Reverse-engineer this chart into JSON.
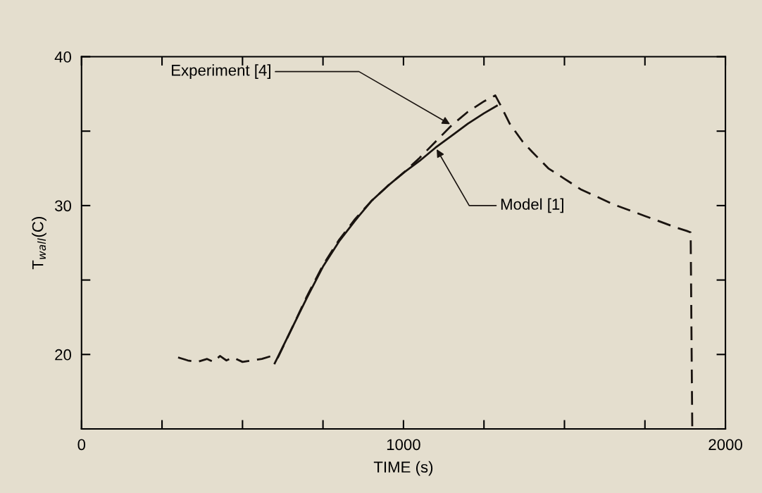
{
  "chart_data": {
    "type": "line",
    "xlabel": "TIME (s)",
    "ylabel": "T$_{wall}$(C)",
    "xlim": [
      0,
      2000
    ],
    "ylim": [
      15,
      40
    ],
    "xticks": [
      0,
      {
        "value": 250,
        "label": null
      },
      {
        "value": 500,
        "label": null
      },
      {
        "value": 750,
        "label": null
      },
      1000,
      {
        "value": 1250,
        "label": null
      },
      {
        "value": 1500,
        "label": null
      },
      {
        "value": 1750,
        "label": null
      },
      2000
    ],
    "yticks": [
      {
        "value": 15,
        "label": null
      },
      20,
      {
        "value": 25,
        "label": null
      },
      30,
      {
        "value": 35,
        "label": null
      },
      40
    ],
    "grid": false,
    "legend": false,
    "marker": "none",
    "series": [
      {
        "color": "#1a1410",
        "line_style": "dashed",
        "x": [
          300,
          330,
          360,
          390,
          410,
          430,
          450,
          470,
          500,
          530,
          560,
          590,
          610,
          650,
          700,
          750,
          800,
          850,
          900,
          950,
          1000,
          1050,
          1100,
          1150,
          1200,
          1250,
          1285,
          1300,
          1330,
          1370,
          1400,
          1450,
          1500,
          1550,
          1600,
          1650,
          1700,
          1750,
          1800,
          1850,
          1880,
          1892,
          1897
        ],
        "values": [
          19.8,
          19.6,
          19.5,
          19.7,
          19.5,
          19.9,
          19.6,
          19.8,
          19.5,
          19.6,
          19.7,
          19.9,
          19.8,
          21.6,
          23.9,
          26.0,
          27.7,
          29.1,
          30.3,
          31.3,
          32.2,
          33.2,
          34.3,
          35.4,
          36.3,
          37.0,
          37.4,
          36.8,
          35.5,
          34.3,
          33.6,
          32.5,
          31.8,
          31.1,
          30.6,
          30.1,
          29.7,
          29.3,
          28.9,
          28.5,
          28.3,
          28.2,
          15
        ]
      },
      {
        "color": "#1a1410",
        "line_style": "solid",
        "x": [
          600,
          650,
          700,
          750,
          800,
          850,
          900,
          950,
          1000,
          1050,
          1100,
          1150,
          1200,
          1250,
          1290
        ],
        "values": [
          19.4,
          21.6,
          23.8,
          25.9,
          27.6,
          29.0,
          30.3,
          31.3,
          32.2,
          33.0,
          33.9,
          34.7,
          35.5,
          36.2,
          36.7
        ]
      }
    ],
    "annotations": [
      {
        "text": "Experiment [4]",
        "x": 1150,
        "y": 35.4
      },
      {
        "text": "Model [1]",
        "x": 1100,
        "y": 33.9
      }
    ]
  }
}
